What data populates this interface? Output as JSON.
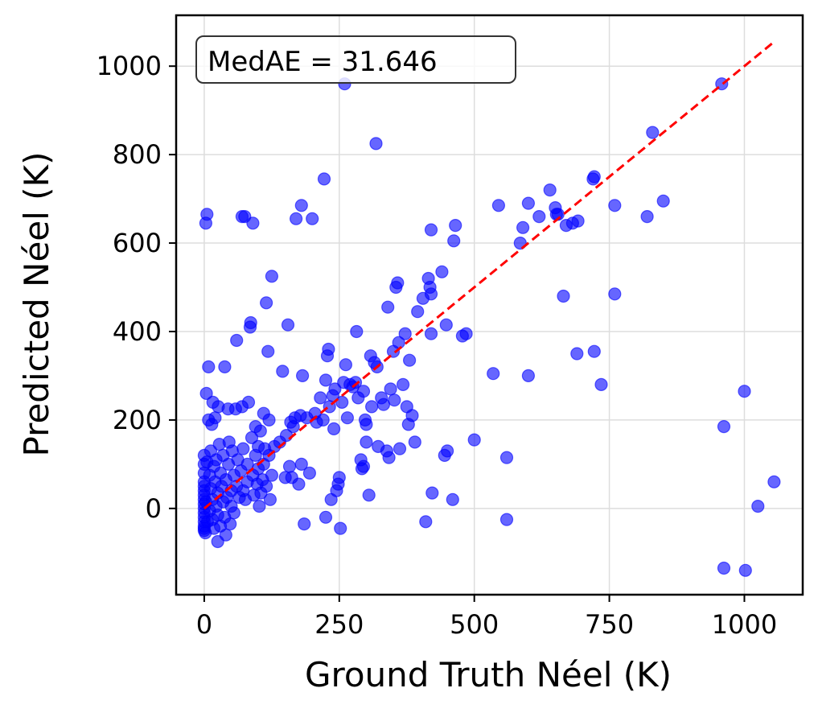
{
  "chart_data": {
    "type": "scatter",
    "title": "",
    "xlabel": "Ground Truth Néel (K)",
    "ylabel": "Predicted Néel (K)",
    "xlim": [
      -52,
      1108
    ],
    "ylim": [
      -195,
      1115
    ],
    "xticks": [
      0,
      250,
      500,
      750,
      1000
    ],
    "yticks": [
      0,
      200,
      400,
      600,
      800,
      1000
    ],
    "grid": true,
    "point_color": "#0000ff",
    "point_opacity": 0.6,
    "reference_line": {
      "x": [
        0,
        1055
      ],
      "y": [
        0,
        1055
      ],
      "color": "#ff0000",
      "style": "dashed"
    },
    "annotation": {
      "text": "MedAE = 31.646",
      "placement": "top-left"
    },
    "series": [
      {
        "points": [
          [
            0,
            -50
          ],
          [
            0,
            -45
          ],
          [
            0,
            -40
          ],
          [
            0,
            -30
          ],
          [
            0,
            -20
          ],
          [
            0,
            -10
          ],
          [
            0,
            0
          ],
          [
            0,
            10
          ],
          [
            0,
            20
          ],
          [
            0,
            30
          ],
          [
            0,
            40
          ],
          [
            0,
            50
          ],
          [
            0,
            60
          ],
          [
            0,
            80
          ],
          [
            0,
            100
          ],
          [
            0,
            120
          ],
          [
            2,
            -55
          ],
          [
            3,
            15
          ],
          [
            3,
            645
          ],
          [
            4,
            260
          ],
          [
            5,
            105
          ],
          [
            5,
            665
          ],
          [
            6,
            -30
          ],
          [
            8,
            200
          ],
          [
            8,
            320
          ],
          [
            10,
            75
          ],
          [
            10,
            -5
          ],
          [
            12,
            45
          ],
          [
            12,
            130
          ],
          [
            14,
            190
          ],
          [
            15,
            -25
          ],
          [
            15,
            20
          ],
          [
            16,
            240
          ],
          [
            18,
            95
          ],
          [
            18,
            -45
          ],
          [
            20,
            60
          ],
          [
            20,
            205
          ],
          [
            22,
            5
          ],
          [
            22,
            110
          ],
          [
            25,
            -15
          ],
          [
            25,
            35
          ],
          [
            25,
            -75
          ],
          [
            26,
            230
          ],
          [
            28,
            145
          ],
          [
            30,
            80
          ],
          [
            30,
            -40
          ],
          [
            32,
            50
          ],
          [
            35,
            15
          ],
          [
            35,
            120
          ],
          [
            38,
            -20
          ],
          [
            38,
            320
          ],
          [
            40,
            65
          ],
          [
            40,
            -60
          ],
          [
            42,
            25
          ],
          [
            44,
            225
          ],
          [
            45,
            100
          ],
          [
            46,
            150
          ],
          [
            48,
            -35
          ],
          [
            50,
            40
          ],
          [
            50,
            5
          ],
          [
            52,
            130
          ],
          [
            55,
            75
          ],
          [
            55,
            -10
          ],
          [
            58,
            225
          ],
          [
            60,
            50
          ],
          [
            60,
            380
          ],
          [
            62,
            110
          ],
          [
            65,
            25
          ],
          [
            68,
            85
          ],
          [
            70,
            230
          ],
          [
            70,
            660
          ],
          [
            72,
            40
          ],
          [
            72,
            135
          ],
          [
            75,
            660
          ],
          [
            76,
            20
          ],
          [
            80,
            100
          ],
          [
            80,
            60
          ],
          [
            82,
            240
          ],
          [
            85,
            410
          ],
          [
            86,
            420
          ],
          [
            88,
            160
          ],
          [
            90,
            645
          ],
          [
            90,
            75
          ],
          [
            92,
            30
          ],
          [
            95,
            185
          ],
          [
            95,
            120
          ],
          [
            98,
            55
          ],
          [
            100,
            140
          ],
          [
            100,
            90
          ],
          [
            102,
            5
          ],
          [
            104,
            175
          ],
          [
            105,
            35
          ],
          [
            108,
            65
          ],
          [
            110,
            100
          ],
          [
            110,
            215
          ],
          [
            112,
            135
          ],
          [
            115,
            465
          ],
          [
            115,
            50
          ],
          [
            118,
            355
          ],
          [
            120,
            120
          ],
          [
            120,
            200
          ],
          [
            122,
            20
          ],
          [
            125,
            525
          ],
          [
            125,
            75
          ],
          [
            130,
            140
          ],
          [
            140,
            150
          ],
          [
            145,
            310
          ],
          [
            150,
            70
          ],
          [
            152,
            165
          ],
          [
            155,
            415
          ],
          [
            158,
            95
          ],
          [
            160,
            195
          ],
          [
            162,
            70
          ],
          [
            165,
            185
          ],
          [
            168,
            205
          ],
          [
            170,
            655
          ],
          [
            175,
            55
          ],
          [
            178,
            210
          ],
          [
            180,
            100
          ],
          [
            180,
            685
          ],
          [
            182,
            300
          ],
          [
            185,
            -35
          ],
          [
            190,
            205
          ],
          [
            195,
            80
          ],
          [
            200,
            655
          ],
          [
            205,
            215
          ],
          [
            208,
            195
          ],
          [
            215,
            250
          ],
          [
            220,
            200
          ],
          [
            222,
            745
          ],
          [
            225,
            290
          ],
          [
            225,
            -20
          ],
          [
            228,
            345
          ],
          [
            230,
            360
          ],
          [
            232,
            230
          ],
          [
            235,
            20
          ],
          [
            238,
            255
          ],
          [
            240,
            180
          ],
          [
            242,
            270
          ],
          [
            245,
            40
          ],
          [
            248,
            55
          ],
          [
            250,
            70
          ],
          [
            252,
            -45
          ],
          [
            255,
            240
          ],
          [
            258,
            285
          ],
          [
            260,
            960
          ],
          [
            262,
            325
          ],
          [
            265,
            205
          ],
          [
            270,
            280
          ],
          [
            275,
            275
          ],
          [
            280,
            285
          ],
          [
            282,
            400
          ],
          [
            285,
            250
          ],
          [
            290,
            110
          ],
          [
            292,
            90
          ],
          [
            295,
            265
          ],
          [
            295,
            95
          ],
          [
            298,
            200
          ],
          [
            300,
            190
          ],
          [
            300,
            150
          ],
          [
            305,
            30
          ],
          [
            308,
            345
          ],
          [
            310,
            230
          ],
          [
            315,
            330
          ],
          [
            318,
            825
          ],
          [
            320,
            320
          ],
          [
            322,
            140
          ],
          [
            328,
            250
          ],
          [
            332,
            235
          ],
          [
            338,
            130
          ],
          [
            340,
            455
          ],
          [
            342,
            115
          ],
          [
            345,
            270
          ],
          [
            350,
            355
          ],
          [
            352,
            245
          ],
          [
            355,
            500
          ],
          [
            358,
            510
          ],
          [
            360,
            375
          ],
          [
            362,
            135
          ],
          [
            368,
            280
          ],
          [
            372,
            395
          ],
          [
            375,
            230
          ],
          [
            378,
            190
          ],
          [
            380,
            335
          ],
          [
            385,
            210
          ],
          [
            390,
            150
          ],
          [
            395,
            445
          ],
          [
            405,
            475
          ],
          [
            410,
            -30
          ],
          [
            415,
            520
          ],
          [
            418,
            500
          ],
          [
            420,
            395
          ],
          [
            420,
            485
          ],
          [
            420,
            630
          ],
          [
            422,
            35
          ],
          [
            440,
            535
          ],
          [
            445,
            120
          ],
          [
            448,
            415
          ],
          [
            450,
            130
          ],
          [
            460,
            20
          ],
          [
            462,
            605
          ],
          [
            465,
            640
          ],
          [
            478,
            390
          ],
          [
            485,
            395
          ],
          [
            500,
            155
          ],
          [
            535,
            305
          ],
          [
            545,
            685
          ],
          [
            560,
            115
          ],
          [
            560,
            -25
          ],
          [
            585,
            600
          ],
          [
            590,
            635
          ],
          [
            600,
            690
          ],
          [
            600,
            300
          ],
          [
            620,
            660
          ],
          [
            640,
            720
          ],
          [
            650,
            680
          ],
          [
            652,
            665
          ],
          [
            655,
            665
          ],
          [
            665,
            480
          ],
          [
            670,
            640
          ],
          [
            682,
            645
          ],
          [
            690,
            350
          ],
          [
            692,
            650
          ],
          [
            720,
            745
          ],
          [
            722,
            750
          ],
          [
            722,
            355
          ],
          [
            735,
            280
          ],
          [
            760,
            485
          ],
          [
            760,
            685
          ],
          [
            820,
            660
          ],
          [
            830,
            850
          ],
          [
            850,
            695
          ],
          [
            958,
            960
          ],
          [
            962,
            185
          ],
          [
            962,
            -135
          ],
          [
            1000,
            265
          ],
          [
            1002,
            -140
          ],
          [
            1025,
            5
          ],
          [
            1055,
            60
          ]
        ]
      }
    ]
  }
}
